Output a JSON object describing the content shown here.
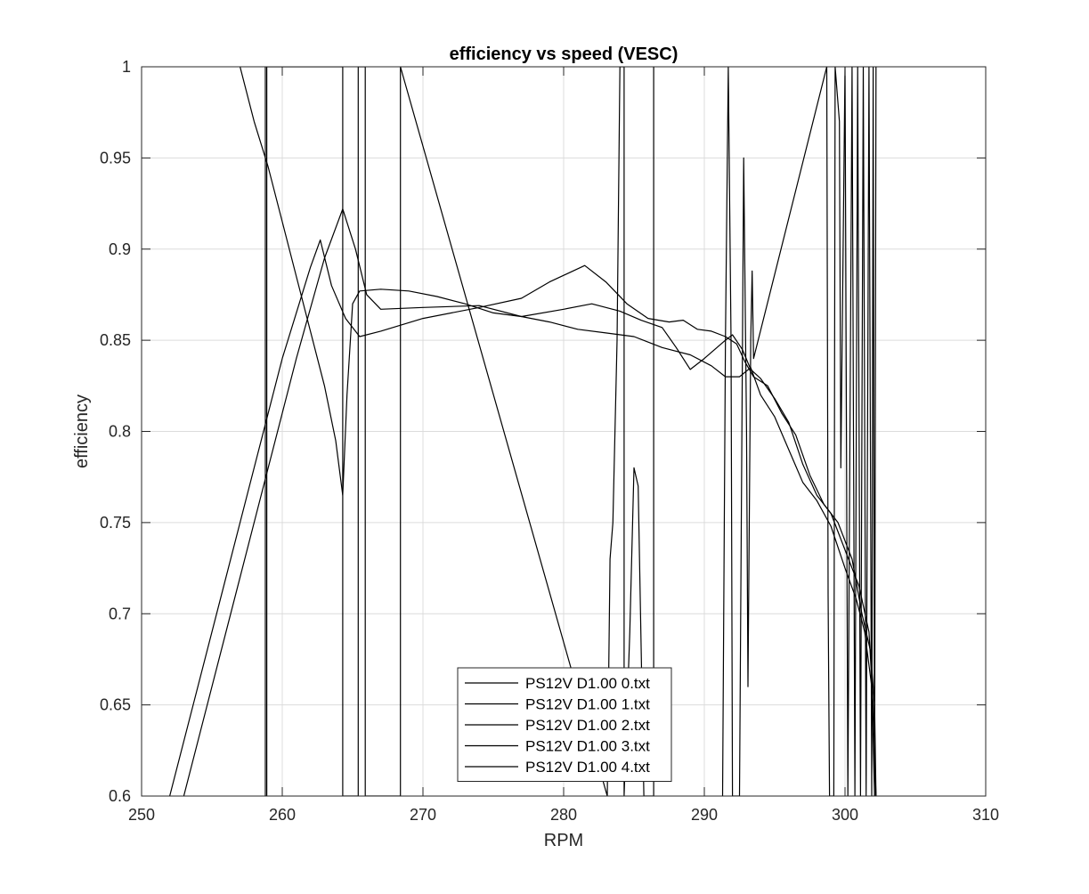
{
  "chart_data": {
    "type": "line",
    "title": "efficiency vs speed (VESC)",
    "xlabel": "RPM",
    "ylabel": "efficiency",
    "xlim": [
      250,
      310
    ],
    "ylim": [
      0.6,
      1
    ],
    "xticks": [
      "250",
      "260",
      "270",
      "280",
      "290",
      "300",
      "310"
    ],
    "yticks": [
      "0.6",
      "0.65",
      "0.7",
      "0.75",
      "0.8",
      "0.85",
      "0.9",
      "0.95",
      "1"
    ],
    "grid": true,
    "legend_position": "bottom-center",
    "line_color": "#000000",
    "series": [
      {
        "name": "PS12V D1.00 0.txt",
        "points": [
          [
            252.0,
            0.6
          ],
          [
            254,
            0.66
          ],
          [
            256,
            0.72
          ],
          [
            258,
            0.78
          ],
          [
            260,
            0.84
          ],
          [
            262,
            0.89
          ],
          [
            262.7,
            0.905
          ],
          [
            263.5,
            0.88
          ],
          [
            264.5,
            0.862
          ],
          [
            265.5,
            0.852
          ],
          [
            267,
            0.855
          ],
          [
            270,
            0.862
          ],
          [
            274,
            0.868
          ],
          [
            277,
            0.873
          ],
          [
            279,
            0.882
          ],
          [
            281.5,
            0.891
          ],
          [
            283,
            0.882
          ],
          [
            284.5,
            0.87
          ],
          [
            286,
            0.862
          ],
          [
            287.5,
            0.86
          ],
          [
            288.5,
            0.861
          ],
          [
            289.5,
            0.856
          ],
          [
            290.5,
            0.855
          ],
          [
            291.5,
            0.852
          ],
          [
            292.3,
            0.848
          ],
          [
            292.9,
            0.838
          ],
          [
            293.5,
            0.83
          ],
          [
            294.5,
            0.825
          ],
          [
            295.5,
            0.81
          ],
          [
            296.5,
            0.798
          ],
          [
            297.5,
            0.776
          ],
          [
            298.5,
            0.76
          ],
          [
            299.5,
            0.75
          ],
          [
            300.5,
            0.73
          ],
          [
            301.2,
            0.7
          ],
          [
            301.8,
            0.68
          ],
          [
            302.1,
            0.65
          ],
          [
            302.2,
            0.6
          ]
        ]
      },
      {
        "name": "PS12V D1.00 1.txt",
        "points": [
          [
            253.0,
            0.6
          ],
          [
            255,
            0.66
          ],
          [
            257,
            0.72
          ],
          [
            259,
            0.78
          ],
          [
            261,
            0.84
          ],
          [
            263,
            0.895
          ],
          [
            264.3,
            0.922
          ],
          [
            265.2,
            0.9
          ],
          [
            266,
            0.875
          ],
          [
            267,
            0.867
          ],
          [
            270,
            0.868
          ],
          [
            274,
            0.869
          ],
          [
            277,
            0.863
          ],
          [
            280,
            0.867
          ],
          [
            282,
            0.87
          ],
          [
            284,
            0.866
          ],
          [
            285.5,
            0.861
          ],
          [
            287,
            0.857
          ],
          [
            288,
            0.846
          ],
          [
            289,
            0.834
          ],
          [
            290,
            0.84
          ],
          [
            291.5,
            0.85
          ],
          [
            292,
            0.853
          ],
          [
            292.7,
            0.845
          ],
          [
            293.3,
            0.834
          ],
          [
            294,
            0.829
          ],
          [
            295,
            0.818
          ],
          [
            296,
            0.805
          ],
          [
            297,
            0.782
          ],
          [
            298,
            0.765
          ],
          [
            299,
            0.755
          ],
          [
            300,
            0.735
          ],
          [
            301,
            0.715
          ],
          [
            301.7,
            0.69
          ],
          [
            302.0,
            0.65
          ],
          [
            302.2,
            0.6
          ]
        ]
      },
      {
        "name": "PS12V D1.00 2.txt",
        "points": [
          [
            257.0,
            1.0
          ],
          [
            258,
            0.97
          ],
          [
            259,
            0.945
          ],
          [
            260,
            0.915
          ],
          [
            261,
            0.885
          ],
          [
            262,
            0.855
          ],
          [
            263,
            0.825
          ],
          [
            263.8,
            0.795
          ],
          [
            264.3,
            0.765
          ],
          [
            264.6,
            0.82
          ],
          [
            265.0,
            0.87
          ],
          [
            265.5,
            0.877
          ],
          [
            267,
            0.878
          ],
          [
            269,
            0.877
          ],
          [
            271,
            0.874
          ],
          [
            273,
            0.87
          ],
          [
            275,
            0.865
          ],
          [
            277,
            0.863
          ],
          [
            279,
            0.86
          ],
          [
            281,
            0.856
          ],
          [
            283,
            0.854
          ],
          [
            285,
            0.852
          ],
          [
            287,
            0.846
          ],
          [
            289,
            0.842
          ],
          [
            290.5,
            0.836
          ],
          [
            291.5,
            0.83
          ],
          [
            292.5,
            0.83
          ],
          [
            293.3,
            0.835
          ],
          [
            294,
            0.82
          ],
          [
            295,
            0.808
          ],
          [
            296,
            0.79
          ],
          [
            297,
            0.772
          ],
          [
            298,
            0.762
          ],
          [
            299,
            0.748
          ],
          [
            300,
            0.725
          ],
          [
            300.8,
            0.708
          ],
          [
            301.4,
            0.69
          ],
          [
            301.9,
            0.66
          ],
          [
            302.1,
            0.6
          ]
        ]
      },
      {
        "name": "PS12V D1.00 3.txt",
        "points": [
          [
            258.8,
            1.0
          ],
          [
            258.8,
            0.6
          ],
          [
            258.9,
            0.6
          ],
          [
            258.9,
            1.0
          ],
          [
            264.3,
            1.0
          ],
          [
            264.3,
            0.6
          ],
          [
            265.4,
            0.6
          ],
          [
            265.4,
            1.0
          ],
          [
            265.9,
            1.0
          ],
          [
            265.9,
            0.6
          ],
          [
            268.4,
            0.6
          ],
          [
            268.4,
            1.0
          ],
          [
            283.1,
            0.6
          ],
          [
            283.3,
            0.73
          ],
          [
            283.5,
            0.75
          ],
          [
            283.8,
            0.85
          ],
          [
            284.0,
            1.0
          ],
          [
            284.3,
            1.0
          ],
          [
            284.3,
            0.6
          ],
          [
            284.7,
            0.69
          ],
          [
            285.0,
            0.78
          ],
          [
            285.3,
            0.77
          ],
          [
            285.7,
            0.6
          ],
          [
            286.4,
            0.6
          ],
          [
            286.4,
            1.0
          ]
        ]
      },
      {
        "name": "PS12V D1.00 4.txt",
        "points": [
          [
            291.3,
            0.6
          ],
          [
            291.5,
            0.85
          ],
          [
            291.7,
            1.0
          ],
          [
            291.9,
            0.85
          ],
          [
            292.0,
            0.6
          ],
          [
            292.5,
            0.6
          ],
          [
            292.8,
            0.95
          ],
          [
            293.0,
            0.8
          ],
          [
            293.1,
            0.66
          ],
          [
            293.3,
            0.85
          ],
          [
            293.4,
            0.888
          ],
          [
            293.5,
            0.84
          ],
          [
            298.7,
            1.0
          ],
          [
            298.8,
            0.71
          ],
          [
            298.9,
            0.6
          ],
          [
            299.2,
            0.6
          ],
          [
            299.3,
            1.0
          ],
          [
            299.6,
            0.97
          ],
          [
            299.7,
            0.78
          ],
          [
            300.0,
            1.0
          ],
          [
            300.2,
            0.6
          ],
          [
            300.5,
            1.0
          ],
          [
            300.7,
            0.6
          ],
          [
            300.9,
            1.0
          ],
          [
            301.1,
            0.6
          ],
          [
            301.3,
            1.0
          ],
          [
            301.5,
            0.6
          ],
          [
            301.7,
            1.0
          ],
          [
            301.9,
            0.6
          ],
          [
            302.0,
            1.0
          ],
          [
            302.1,
            0.6
          ],
          [
            302.2,
            1.0
          ]
        ]
      }
    ]
  }
}
